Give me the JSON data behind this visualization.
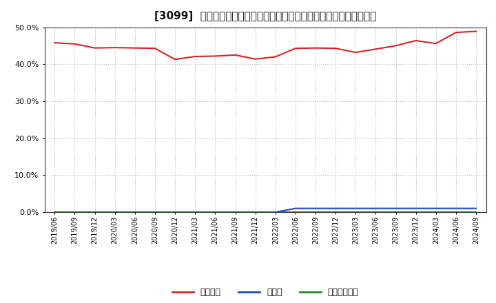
{
  "title": "[3099]  自己資本、のれん、繰延税金資産の総資産に対する比率の推移",
  "x_labels": [
    "2019/06",
    "2019/09",
    "2019/12",
    "2020/03",
    "2020/06",
    "2020/09",
    "2020/12",
    "2021/03",
    "2021/06",
    "2021/09",
    "2021/12",
    "2022/03",
    "2022/06",
    "2022/09",
    "2022/12",
    "2023/03",
    "2023/06",
    "2023/09",
    "2023/12",
    "2024/03",
    "2024/06",
    "2024/09"
  ],
  "equity_ratio": [
    0.458,
    0.455,
    0.444,
    0.445,
    0.444,
    0.443,
    0.413,
    0.421,
    0.422,
    0.425,
    0.414,
    0.42,
    0.443,
    0.444,
    0.443,
    0.432,
    0.441,
    0.45,
    0.464,
    0.456,
    0.486,
    0.489
  ],
  "goodwill_ratio": [
    0.0,
    0.0,
    0.0,
    0.0,
    0.0,
    0.0,
    0.0,
    0.0,
    0.0,
    0.0,
    0.0,
    0.0,
    0.01,
    0.01,
    0.01,
    0.01,
    0.01,
    0.01,
    0.01,
    0.01,
    0.01,
    0.01
  ],
  "deferred_tax_ratio": [
    0.0,
    0.0,
    0.0,
    0.0,
    0.0,
    0.0,
    0.0,
    0.0,
    0.0,
    0.0,
    0.0,
    0.0,
    0.0,
    0.0,
    0.0,
    0.0,
    0.0,
    0.0,
    0.0,
    0.0,
    0.0,
    0.0
  ],
  "equity_color": "#dd2222",
  "goodwill_color": "#2244cc",
  "deferred_tax_color": "#228822",
  "bg_color": "#ffffff",
  "plot_bg_color": "#ffffff",
  "grid_color": "#bbbbbb",
  "ylim": [
    0.0,
    0.5
  ],
  "yticks": [
    0.0,
    0.1,
    0.2,
    0.3,
    0.4,
    0.5
  ],
  "legend_labels": [
    "自己資本",
    "のれん",
    "繰延税金資産"
  ],
  "title_prefix": "[3099]  "
}
